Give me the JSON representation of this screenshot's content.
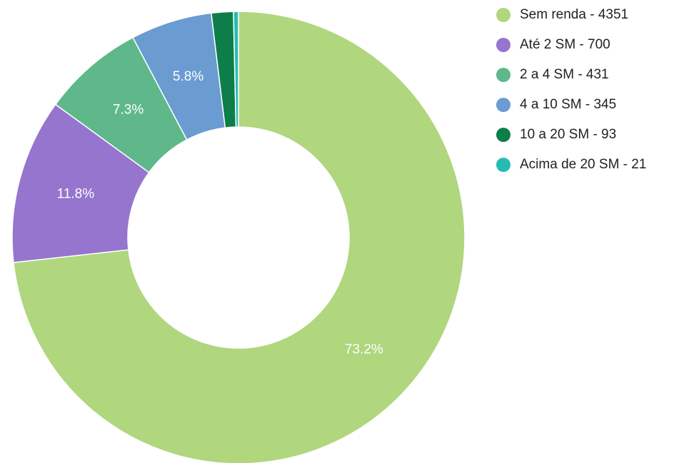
{
  "chart_data": {
    "type": "donut",
    "categories": [
      "Sem renda - 4351",
      "Até 2 SM - 700",
      "2 a 4 SM - 431",
      "4 a 10 SM - 345",
      "10 a 20 SM - 93",
      "Acima de 20 SM - 21"
    ],
    "values": [
      4351,
      700,
      431,
      345,
      93,
      21
    ],
    "value_labels": [
      "73.2%",
      "11.8%",
      "7.3%",
      "5.8%",
      null,
      null
    ],
    "colors": [
      "#b0d67e",
      "#9575cd",
      "#5fb88a",
      "#6a9bd1",
      "#0d7e4a",
      "#26bcb5"
    ]
  }
}
